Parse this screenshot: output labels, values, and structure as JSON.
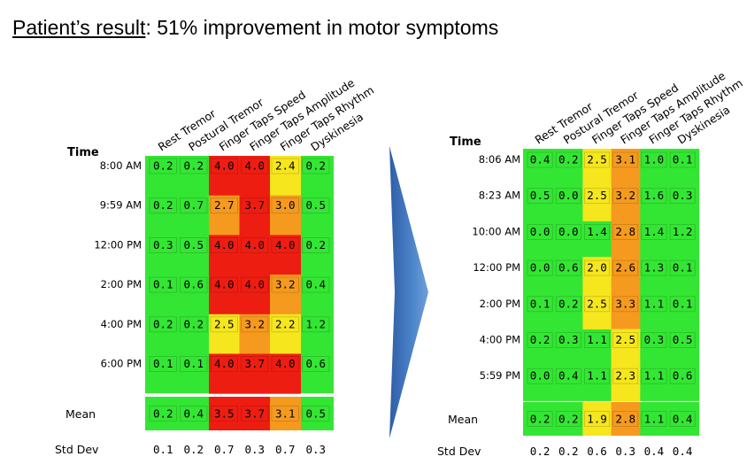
{
  "headline": {
    "label": "Patient’s result",
    "separator": ":",
    "text": " 51% improvement in motor symptoms"
  },
  "colors": {
    "green": "#33e633",
    "yellow": "#f5e61e",
    "orange": "#f59a1e",
    "red": "#ee1d12",
    "arrow": "#3d6fb8"
  },
  "chart_data": [
    {
      "type": "heatmap",
      "time_header": "Time",
      "columns": [
        "Rest Tremor",
        "Postural Tremor",
        "Finger Taps Speed",
        "Finger Taps Amplitude",
        "Finger Taps Rhythm",
        "Dyskinesia"
      ],
      "rows": [
        "8:00 AM",
        "9:59 AM",
        "12:00 PM",
        "2:00 PM",
        "4:00 PM",
        "6:00 PM"
      ],
      "values": [
        [
          "0.2",
          "0.2",
          "4.0",
          "4.0",
          "2.4",
          "0.2"
        ],
        [
          "0.2",
          "0.7",
          "2.7",
          "3.7",
          "3.0",
          "0.5"
        ],
        [
          "0.3",
          "0.5",
          "4.0",
          "4.0",
          "4.0",
          "0.2"
        ],
        [
          "0.1",
          "0.6",
          "4.0",
          "4.0",
          "3.2",
          "0.4"
        ],
        [
          "0.2",
          "0.2",
          "2.5",
          "3.2",
          "2.2",
          "1.2"
        ],
        [
          "0.1",
          "0.1",
          "4.0",
          "3.7",
          "4.0",
          "0.6"
        ]
      ],
      "mean_label": "Mean",
      "mean": [
        "0.2",
        "0.4",
        "3.5",
        "3.7",
        "3.1",
        "0.5"
      ],
      "std_label": "Std Dev",
      "std": [
        "0.1",
        "0.2",
        "0.7",
        "0.3",
        "0.7",
        "0.3"
      ]
    },
    {
      "type": "heatmap",
      "time_header": "Time",
      "columns": [
        "Rest Tremor",
        "Postural Tremor",
        "Finger Taps Speed",
        "Finger Taps Amplitude",
        "Finger Taps Rhythm",
        "Dyskinesia"
      ],
      "rows": [
        "8:06 AM",
        "8:23 AM",
        "10:00 AM",
        "12:00 PM",
        "2:00 PM",
        "4:00 PM",
        "5:59 PM"
      ],
      "values": [
        [
          "0.4",
          "0.2",
          "2.5",
          "3.1",
          "1.0",
          "0.1"
        ],
        [
          "0.5",
          "0.0",
          "2.5",
          "3.2",
          "1.6",
          "0.3"
        ],
        [
          "0.0",
          "0.0",
          "1.4",
          "2.8",
          "1.4",
          "1.2"
        ],
        [
          "0.0",
          "0.6",
          "2.0",
          "2.6",
          "1.3",
          "0.1"
        ],
        [
          "0.1",
          "0.2",
          "2.5",
          "3.3",
          "1.1",
          "0.1"
        ],
        [
          "0.2",
          "0.3",
          "1.1",
          "2.5",
          "0.3",
          "0.5"
        ],
        [
          "0.0",
          "0.4",
          "1.1",
          "2.3",
          "1.1",
          "0.6"
        ]
      ],
      "mean_label": "Mean",
      "mean": [
        "0.2",
        "0.2",
        "1.9",
        "2.8",
        "1.1",
        "0.4"
      ],
      "std_label": "Std Dev",
      "std": [
        "0.2",
        "0.2",
        "0.6",
        "0.3",
        "0.4",
        "0.4"
      ]
    }
  ]
}
